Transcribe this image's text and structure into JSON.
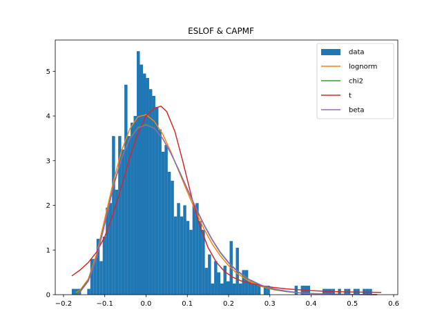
{
  "chart_data": {
    "type": "bar",
    "title": "ESLOF & CAPMF",
    "xlabel": "",
    "ylabel": "",
    "xlim": [
      -0.22,
      0.61
    ],
    "ylim": [
      0,
      5.7
    ],
    "grid": false,
    "legend_position": "top-right",
    "x_ticks": [
      -0.2,
      -0.1,
      0.0,
      0.1,
      0.2,
      0.3,
      0.4,
      0.5,
      0.6
    ],
    "x_tick_labels": [
      "−0.2",
      "−0.1",
      "0.0",
      "0.1",
      "0.2",
      "0.3",
      "0.4",
      "0.5",
      "0.6"
    ],
    "y_ticks": [
      0,
      1,
      2,
      3,
      4,
      5
    ],
    "y_tick_labels": [
      "0",
      "1",
      "2",
      "3",
      "4",
      "5"
    ],
    "histogram": {
      "name": "data",
      "color": "#1f77b4",
      "bin_start": -0.18,
      "bin_width": 0.0075,
      "heights": [
        0.13,
        0.13,
        0.13,
        0,
        0,
        0.13,
        0.8,
        0.8,
        1.25,
        0.75,
        1.3,
        1.95,
        2.05,
        3.55,
        2.35,
        3.55,
        3.25,
        4.7,
        3.55,
        3.85,
        4.0,
        5.45,
        5.15,
        4.95,
        4.85,
        4.6,
        4.45,
        4.2,
        3.7,
        3.2,
        3.35,
        2.75,
        2.55,
        1.75,
        2.05,
        1.75,
        2.0,
        1.65,
        1.45,
        2.0,
        2.05,
        1.65,
        1.45,
        0.6,
        0.9,
        0.25,
        0.75,
        0.5,
        0.25,
        0.65,
        0.3,
        1.2,
        0.25,
        1.05,
        0.25,
        0.55,
        0.55,
        0.3,
        0.25,
        0.25,
        0.2,
        0,
        0.2,
        0.2,
        0,
        0,
        0,
        0,
        0,
        0,
        0,
        0,
        0.2,
        0,
        0.2,
        0.2,
        0.2,
        0,
        0,
        0,
        0,
        0.13,
        0.13,
        0.13,
        0.13,
        0,
        0.13,
        0,
        0.13,
        0.13,
        0,
        0.13,
        0.13,
        0,
        0.13,
        0.13,
        0.13
      ]
    },
    "series": [
      {
        "name": "lognorm",
        "color": "#ff7f0e",
        "x": [
          -0.17,
          -0.16,
          -0.14,
          -0.12,
          -0.1,
          -0.08,
          -0.06,
          -0.04,
          -0.02,
          0.0,
          0.02,
          0.04,
          0.06,
          0.08,
          0.1,
          0.12,
          0.14,
          0.16,
          0.18,
          0.2,
          0.22,
          0.25,
          0.28,
          0.31,
          0.34,
          0.37,
          0.4,
          0.45,
          0.5,
          0.56
        ],
        "y": [
          0.05,
          0.1,
          0.35,
          0.9,
          1.7,
          2.5,
          3.2,
          3.7,
          3.98,
          4.03,
          3.88,
          3.6,
          3.2,
          2.75,
          2.3,
          1.87,
          1.48,
          1.14,
          0.87,
          0.65,
          0.48,
          0.3,
          0.18,
          0.11,
          0.07,
          0.04,
          0.025,
          0.01,
          0.005,
          0.002
        ]
      },
      {
        "name": "chi2",
        "color": "#2ca02c",
        "x": [
          -0.17,
          -0.16,
          -0.14,
          -0.12,
          -0.1,
          -0.08,
          -0.06,
          -0.04,
          -0.02,
          0.0,
          0.02,
          0.04,
          0.06,
          0.08,
          0.1,
          0.12,
          0.14,
          0.16,
          0.18,
          0.2,
          0.22,
          0.25,
          0.28,
          0.31,
          0.34,
          0.37,
          0.4,
          0.45,
          0.5,
          0.56
        ],
        "y": [
          0.02,
          0.08,
          0.32,
          0.85,
          1.6,
          2.4,
          3.05,
          3.5,
          3.75,
          3.82,
          3.73,
          3.5,
          3.17,
          2.77,
          2.36,
          1.95,
          1.57,
          1.23,
          0.94,
          0.71,
          0.53,
          0.33,
          0.2,
          0.12,
          0.07,
          0.04,
          0.025,
          0.01,
          0.004,
          0.001
        ]
      },
      {
        "name": "t",
        "color": "#d62728",
        "x": [
          -0.18,
          -0.16,
          -0.14,
          -0.12,
          -0.1,
          -0.08,
          -0.06,
          -0.04,
          -0.02,
          0.0,
          0.02,
          0.036,
          0.05,
          0.07,
          0.09,
          0.11,
          0.13,
          0.15,
          0.17,
          0.19,
          0.21,
          0.23,
          0.25,
          0.28,
          0.31,
          0.34,
          0.37,
          0.4,
          0.45,
          0.5,
          0.57
        ],
        "y": [
          0.42,
          0.55,
          0.72,
          0.95,
          1.3,
          1.8,
          2.4,
          3.05,
          3.6,
          4.0,
          4.17,
          4.22,
          4.1,
          3.65,
          2.95,
          2.2,
          1.55,
          1.06,
          0.73,
          0.52,
          0.39,
          0.31,
          0.26,
          0.2,
          0.16,
          0.13,
          0.11,
          0.09,
          0.07,
          0.06,
          0.05
        ]
      },
      {
        "name": "beta",
        "color": "#9467bd",
        "x": [
          -0.165,
          -0.16,
          -0.14,
          -0.12,
          -0.1,
          -0.08,
          -0.06,
          -0.04,
          -0.02,
          0.0,
          0.02,
          0.04,
          0.06,
          0.08,
          0.1,
          0.12,
          0.14,
          0.16,
          0.18,
          0.2,
          0.22,
          0.25,
          0.28,
          0.31,
          0.34,
          0.37,
          0.4,
          0.45,
          0.5,
          0.56
        ],
        "y": [
          0.0,
          0.06,
          0.3,
          0.83,
          1.58,
          2.38,
          3.03,
          3.48,
          3.73,
          3.8,
          3.72,
          3.5,
          3.17,
          2.78,
          2.37,
          1.96,
          1.58,
          1.24,
          0.95,
          0.72,
          0.54,
          0.34,
          0.21,
          0.13,
          0.08,
          0.045,
          0.025,
          0.01,
          0.003,
          0.0
        ]
      }
    ]
  }
}
